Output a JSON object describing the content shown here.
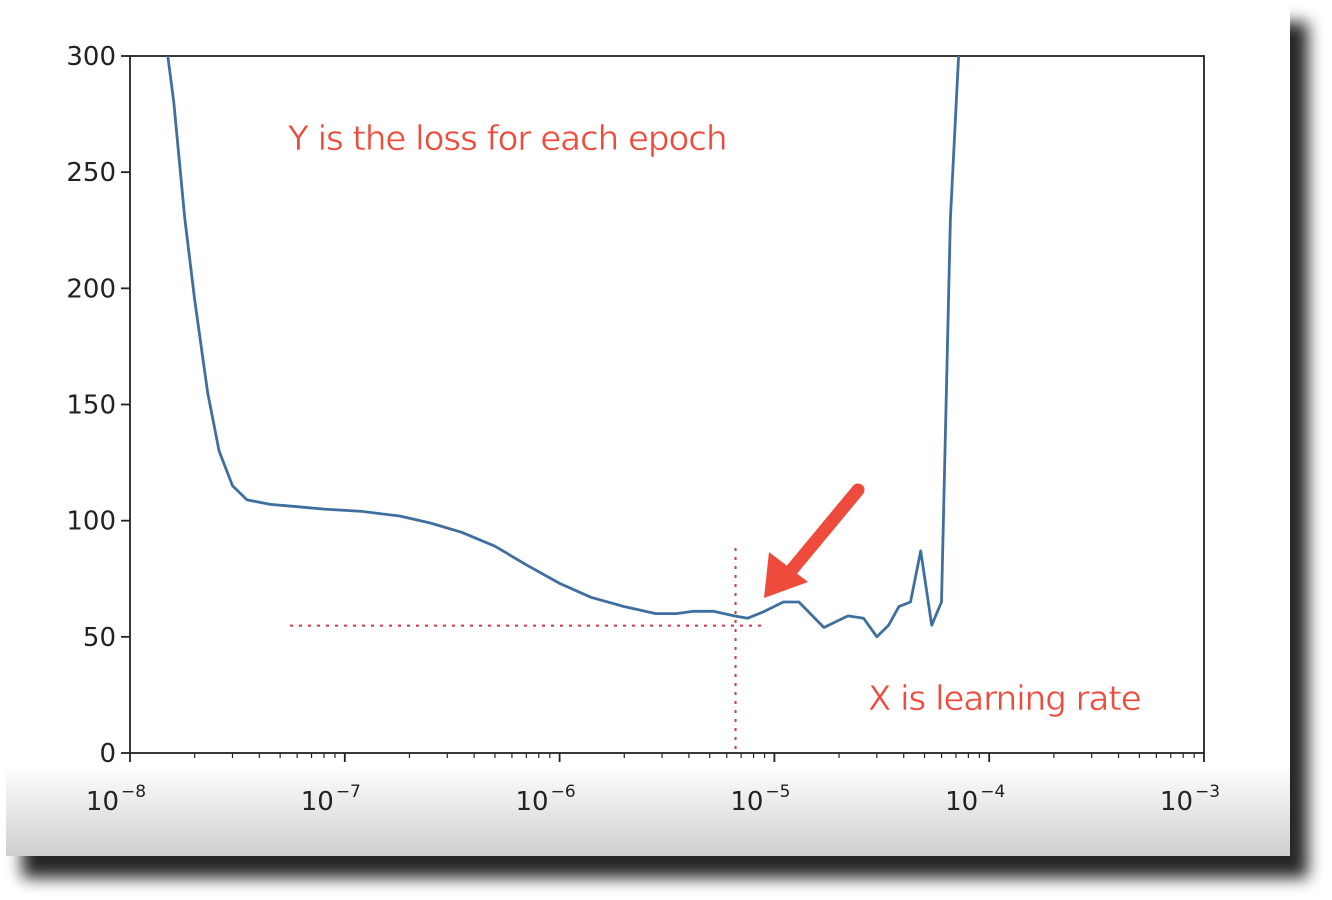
{
  "chart_data": {
    "type": "line",
    "x_scale": "log",
    "xlim": [
      1e-08,
      0.001
    ],
    "ylim": [
      0,
      300
    ],
    "x_ticks": [
      {
        "value": 1e-08,
        "base": "10",
        "exp": "−8"
      },
      {
        "value": 1e-07,
        "base": "10",
        "exp": "−7"
      },
      {
        "value": 1e-06,
        "base": "10",
        "exp": "−6"
      },
      {
        "value": 1e-05,
        "base": "10",
        "exp": "−5"
      },
      {
        "value": 0.0001,
        "base": "10",
        "exp": "−4"
      },
      {
        "value": 0.001,
        "base": "10",
        "exp": "−3"
      }
    ],
    "y_ticks": [
      0,
      50,
      100,
      150,
      200,
      250,
      300
    ],
    "grid": false,
    "x": [
      1.5e-08,
      1.6e-08,
      1.8e-08,
      2e-08,
      2.3e-08,
      2.6e-08,
      3e-08,
      3.5e-08,
      4.5e-08,
      6e-08,
      8e-08,
      1.2e-07,
      1.8e-07,
      2.5e-07,
      3.5e-07,
      5e-07,
      7e-07,
      1e-06,
      1.4e-06,
      2e-06,
      2.8e-06,
      3.5e-06,
      4.2e-06,
      5.2e-06,
      6.5e-06,
      7.5e-06,
      9e-06,
      1.1e-05,
      1.3e-05,
      1.7e-05,
      2.2e-05,
      2.6e-05,
      3e-05,
      3.4e-05,
      3.8e-05,
      4.3e-05,
      4.8e-05,
      5.4e-05,
      6e-05,
      6.6e-05,
      7.2e-05
    ],
    "y": [
      310,
      280,
      230,
      195,
      155,
      130,
      115,
      109,
      107,
      106,
      105,
      104,
      102,
      99,
      95,
      89,
      81,
      73,
      67,
      63,
      60,
      60,
      61,
      61,
      59,
      58,
      61,
      65,
      65,
      54,
      59,
      58,
      50,
      55,
      63,
      65,
      87,
      55,
      65,
      230,
      310
    ],
    "annotation_point": {
      "x": 7.5e-06,
      "y": 57
    },
    "colors": {
      "line": "#3e6f9e",
      "annotation": "#ef4b3d",
      "guide": "#d0384a",
      "axis": "#222222"
    }
  },
  "annotations": {
    "y_note": "Y is the loss for each epoch",
    "x_note": "X is learning rate"
  }
}
